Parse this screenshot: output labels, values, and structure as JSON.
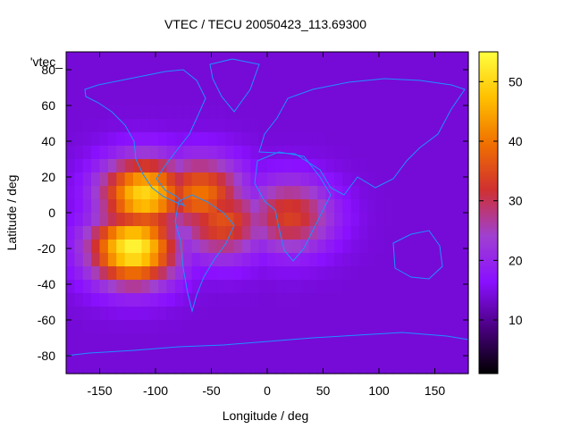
{
  "chart_data": {
    "type": "heatmap",
    "title": "VTEC / TECU 20050423_113.69300",
    "xlabel": "Longitude / deg",
    "ylabel": "Latitude / deg",
    "xlim": [
      -180,
      180
    ],
    "ylim": [
      -90,
      90
    ],
    "xticks": [
      "-150",
      "-100",
      "-50",
      "0",
      "50",
      "100",
      "150"
    ],
    "yticks": [
      "80",
      "60",
      "40",
      "20",
      "0",
      "-20",
      "-40",
      "-60",
      "-80"
    ],
    "key_label": "'vtec_",
    "colorbar": {
      "range": [
        1,
        55
      ],
      "ticks": [
        "10",
        "20",
        "30",
        "40",
        "50"
      ],
      "palette": [
        "#000000",
        "#4a0080",
        "#8a10ff",
        "#a040d0",
        "#d03030",
        "#f07000",
        "#ffc000",
        "#ffff40"
      ]
    },
    "grid": false,
    "enhancement_regions": [
      {
        "lon": -120,
        "lat": -20,
        "value": 54
      },
      {
        "lon": -110,
        "lat": 10,
        "value": 50
      },
      {
        "lon": -60,
        "lat": 10,
        "value": 40
      },
      {
        "lon": -40,
        "lat": -5,
        "value": 36
      },
      {
        "lon": 20,
        "lat": -2,
        "value": 34
      }
    ]
  }
}
